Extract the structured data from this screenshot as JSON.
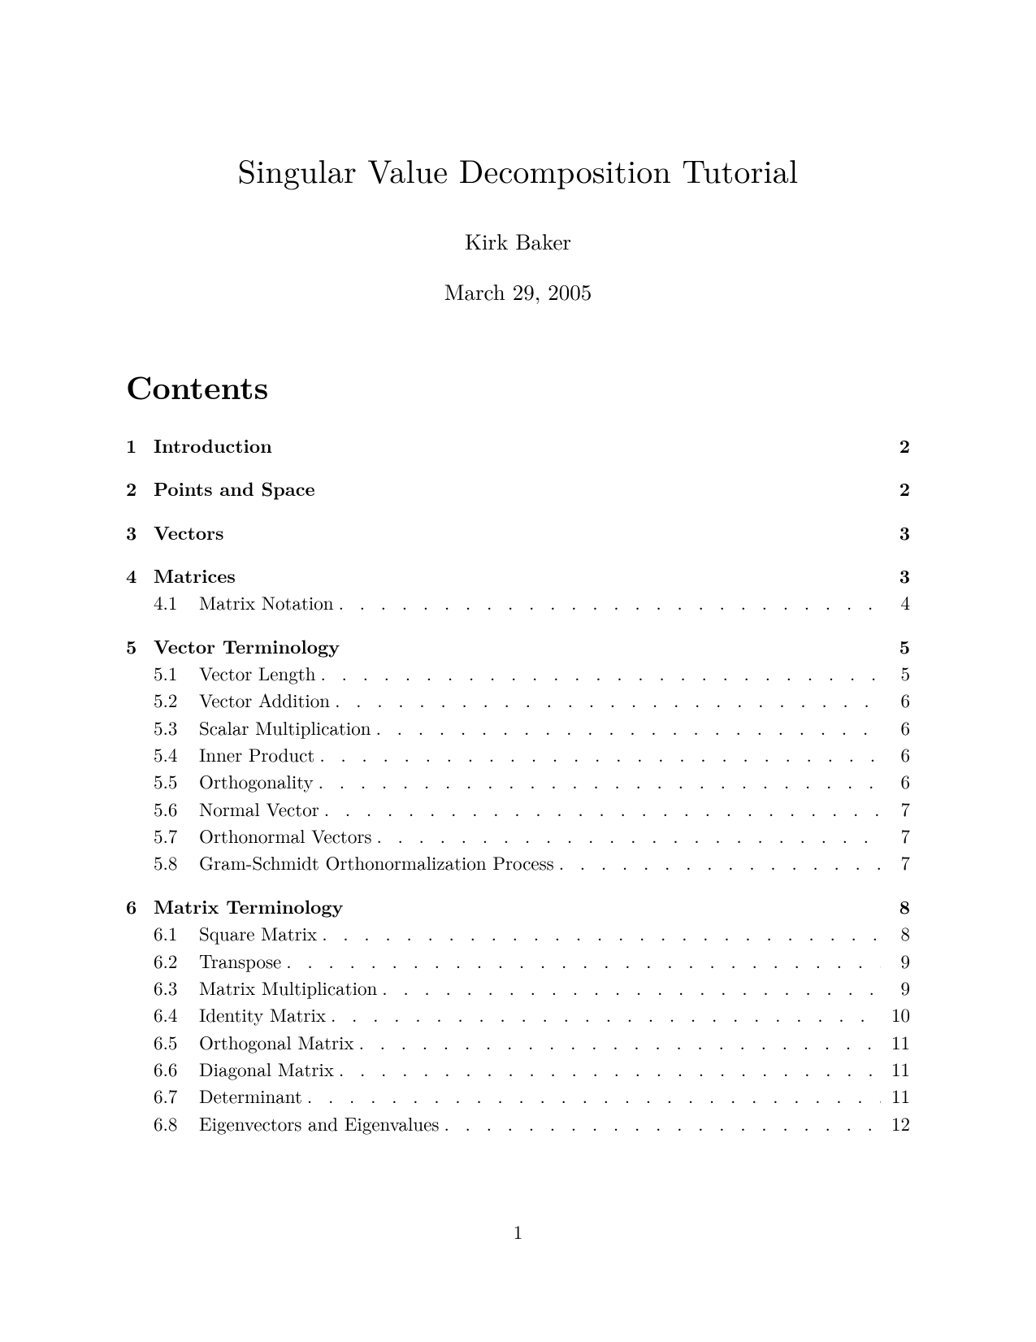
{
  "title": "Singular Value Decomposition Tutorial",
  "author": "Kirk Baker",
  "date": "March 29, 2005",
  "contents_heading": "Contents",
  "page_number": "1",
  "toc": [
    {
      "num": "1",
      "title": "Introduction",
      "page": "2",
      "subs": []
    },
    {
      "num": "2",
      "title": "Points and Space",
      "page": "2",
      "subs": []
    },
    {
      "num": "3",
      "title": "Vectors",
      "page": "3",
      "subs": []
    },
    {
      "num": "4",
      "title": "Matrices",
      "page": "3",
      "subs": [
        {
          "num": "4.1",
          "title": "Matrix Notation",
          "page": "4"
        }
      ]
    },
    {
      "num": "5",
      "title": "Vector Terminology",
      "page": "5",
      "subs": [
        {
          "num": "5.1",
          "title": "Vector Length",
          "page": "5"
        },
        {
          "num": "5.2",
          "title": "Vector Addition",
          "page": "6"
        },
        {
          "num": "5.3",
          "title": "Scalar Multiplication",
          "page": "6"
        },
        {
          "num": "5.4",
          "title": "Inner Product",
          "page": "6"
        },
        {
          "num": "5.5",
          "title": "Orthogonality",
          "page": "6"
        },
        {
          "num": "5.6",
          "title": "Normal Vector",
          "page": "7"
        },
        {
          "num": "5.7",
          "title": "Orthonormal Vectors",
          "page": "7"
        },
        {
          "num": "5.8",
          "title": "Gram-Schmidt Orthonormalization Process",
          "page": "7"
        }
      ]
    },
    {
      "num": "6",
      "title": "Matrix Terminology",
      "page": "8",
      "subs": [
        {
          "num": "6.1",
          "title": "Square Matrix",
          "page": "8"
        },
        {
          "num": "6.2",
          "title": "Transpose",
          "page": "9"
        },
        {
          "num": "6.3",
          "title": "Matrix Multiplication",
          "page": "9"
        },
        {
          "num": "6.4",
          "title": "Identity Matrix",
          "page": "10"
        },
        {
          "num": "6.5",
          "title": "Orthogonal Matrix",
          "page": "11"
        },
        {
          "num": "6.6",
          "title": "Diagonal Matrix",
          "page": "11"
        },
        {
          "num": "6.7",
          "title": "Determinant",
          "page": "11"
        },
        {
          "num": "6.8",
          "title": "Eigenvectors and Eigenvalues",
          "page": "12"
        }
      ]
    }
  ]
}
